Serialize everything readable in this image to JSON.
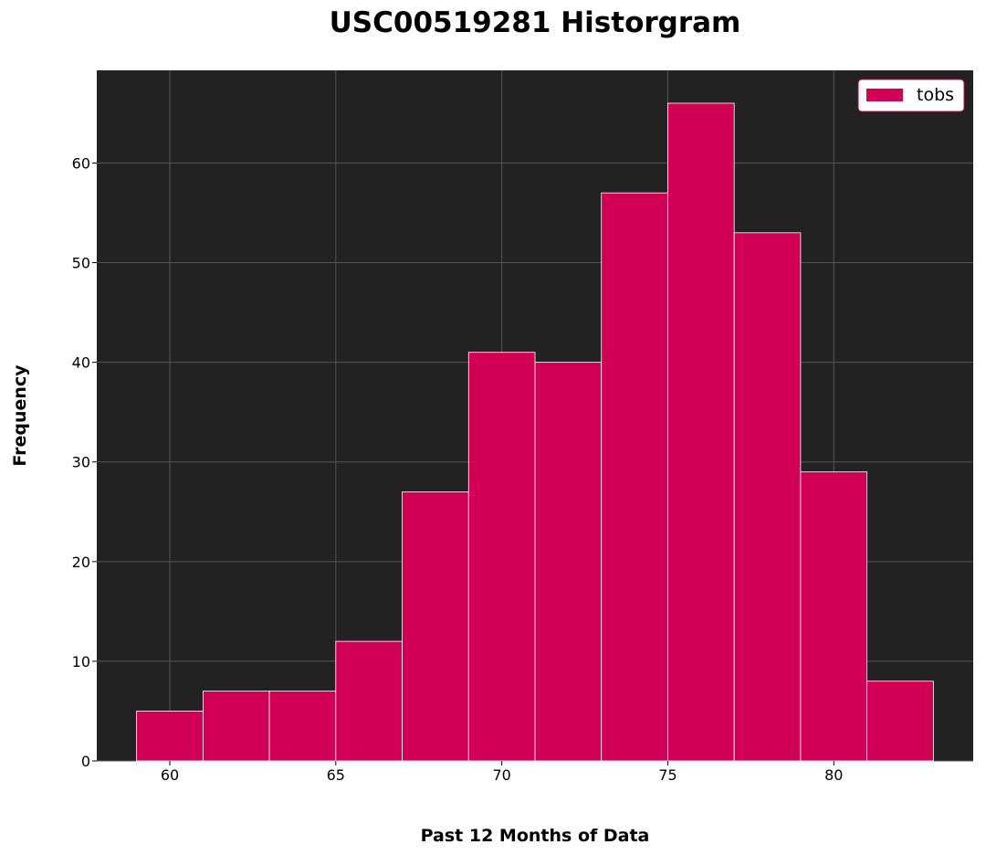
{
  "chart_data": {
    "type": "bar",
    "title": "USC00519281 Historgram",
    "xlabel": "Past 12 Months of Data",
    "ylabel": "Frequency",
    "series": [
      {
        "name": "tobs",
        "bins": [
          {
            "start": 59,
            "end": 61,
            "count": 5
          },
          {
            "start": 61,
            "end": 63,
            "count": 7
          },
          {
            "start": 63,
            "end": 65,
            "count": 7
          },
          {
            "start": 65,
            "end": 67,
            "count": 12
          },
          {
            "start": 67,
            "end": 69,
            "count": 27
          },
          {
            "start": 69,
            "end": 71,
            "count": 41
          },
          {
            "start": 71,
            "end": 73,
            "count": 40
          },
          {
            "start": 73,
            "end": 75,
            "count": 57
          },
          {
            "start": 75,
            "end": 77,
            "count": 66
          },
          {
            "start": 77,
            "end": 79,
            "count": 53
          },
          {
            "start": 79,
            "end": 81,
            "count": 29
          },
          {
            "start": 81,
            "end": 83,
            "count": 8
          }
        ]
      }
    ],
    "xlim": [
      57.8,
      84.2
    ],
    "ylim": [
      0,
      69.3
    ],
    "x_ticks": [
      60,
      65,
      70,
      75,
      80
    ],
    "y_ticks": [
      0,
      10,
      20,
      30,
      40,
      50,
      60
    ],
    "grid": true,
    "legend_position": "top-right",
    "colors": {
      "bar": "#d10056",
      "bar_edge": "#ffffff",
      "plot_background": "#222222",
      "grid": "#555555"
    }
  }
}
